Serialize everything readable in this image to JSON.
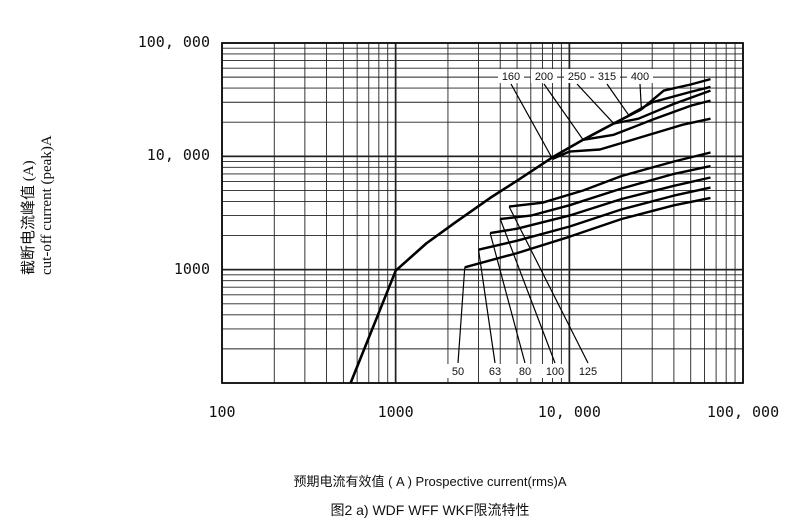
{
  "chart_data": {
    "type": "line",
    "title": "",
    "caption": "图2 a) WDF WFF WKF限流特性",
    "xlabel": "预期电流有效值 ( A ) Prospective current(rms)A",
    "ylabel_cn": "截断电流峰值 (A)",
    "ylabel_en": "cut-off current (peak)A",
    "x_scale": "log",
    "y_scale": "log",
    "xlim": [
      100,
      100000
    ],
    "ylim": [
      100,
      100000
    ],
    "grid": true,
    "x_ticks": [
      {
        "value": 100,
        "label": "100"
      },
      {
        "value": 1000,
        "label": "1000"
      },
      {
        "value": 10000,
        "label": "10, 000"
      },
      {
        "value": 100000,
        "label": "100, 000"
      }
    ],
    "y_ticks": [
      {
        "value": 1000,
        "label": "1000"
      },
      {
        "value": 10000,
        "label": "10, 000"
      },
      {
        "value": 100000,
        "label": "100, 000"
      }
    ],
    "envelope": {
      "points": [
        [
          550,
          100
        ],
        [
          1000,
          980
        ],
        [
          1500,
          1700
        ],
        [
          2200,
          2600
        ],
        [
          3500,
          4300
        ],
        [
          5000,
          6100
        ],
        [
          8000,
          9800
        ],
        [
          12000,
          14000
        ],
        [
          18000,
          19500
        ],
        [
          26000,
          26000
        ]
      ]
    },
    "series": [
      {
        "name": "50",
        "points": [
          [
            2500,
            1050
          ],
          [
            5000,
            1400
          ],
          [
            10000,
            1950
          ],
          [
            20000,
            2800
          ],
          [
            40000,
            3700
          ],
          [
            65000,
            4300
          ]
        ]
      },
      {
        "name": "63",
        "points": [
          [
            3000,
            1500
          ],
          [
            5000,
            1800
          ],
          [
            10000,
            2400
          ],
          [
            20000,
            3400
          ],
          [
            40000,
            4500
          ],
          [
            65000,
            5300
          ]
        ]
      },
      {
        "name": "80",
        "points": [
          [
            3500,
            2100
          ],
          [
            5000,
            2300
          ],
          [
            10000,
            3000
          ],
          [
            20000,
            4200
          ],
          [
            40000,
            5500
          ],
          [
            65000,
            6500
          ]
        ]
      },
      {
        "name": "100",
        "points": [
          [
            4000,
            2800
          ],
          [
            6000,
            3000
          ],
          [
            10000,
            3700
          ],
          [
            20000,
            5200
          ],
          [
            40000,
            7000
          ],
          [
            65000,
            8200
          ]
        ]
      },
      {
        "name": "125",
        "points": [
          [
            4500,
            3600
          ],
          [
            7000,
            3900
          ],
          [
            12000,
            5000
          ],
          [
            20000,
            6700
          ],
          [
            40000,
            9000
          ],
          [
            65000,
            10800
          ]
        ]
      },
      {
        "name": "160",
        "points": [
          [
            8000,
            9500
          ],
          [
            10000,
            11000
          ],
          [
            15000,
            11500
          ],
          [
            25000,
            14500
          ],
          [
            45000,
            19000
          ],
          [
            65000,
            21500
          ]
        ]
      },
      {
        "name": "200",
        "points": [
          [
            12000,
            14000
          ],
          [
            18000,
            15500
          ],
          [
            30000,
            21000
          ],
          [
            50000,
            28000
          ],
          [
            65000,
            31000
          ]
        ]
      },
      {
        "name": "250",
        "points": [
          [
            18000,
            19500
          ],
          [
            25000,
            21500
          ],
          [
            40000,
            29000
          ],
          [
            65000,
            38000
          ]
        ]
      },
      {
        "name": "315",
        "points": [
          [
            22000,
            23000
          ],
          [
            30000,
            30000
          ],
          [
            50000,
            37000
          ],
          [
            65000,
            41000
          ]
        ]
      },
      {
        "name": "400",
        "points": [
          [
            26000,
            26000
          ],
          [
            35000,
            38000
          ],
          [
            50000,
            43000
          ],
          [
            65000,
            48000
          ]
        ]
      }
    ]
  }
}
